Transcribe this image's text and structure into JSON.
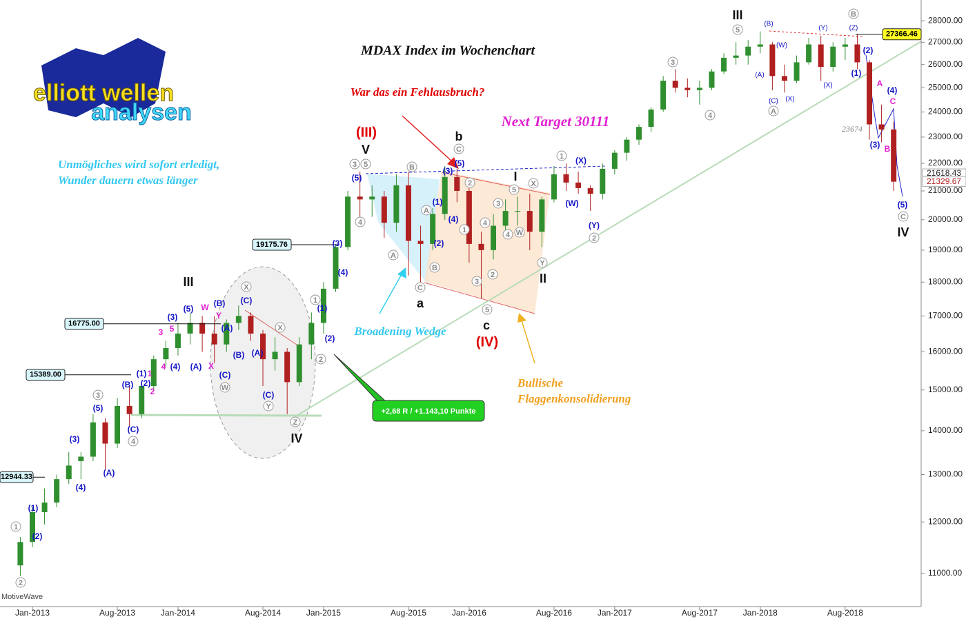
{
  "chart_data": {
    "type": "candlestick",
    "title": "MDAX Index im Wochenchart",
    "log_y": true,
    "ylim": [
      10400,
      29000
    ],
    "yticks": [
      {
        "value": 11000,
        "label": "11000.00"
      },
      {
        "value": 12000,
        "label": "12000.00"
      },
      {
        "value": 13000,
        "label": "13000.00"
      },
      {
        "value": 14000,
        "label": "14000.00"
      },
      {
        "value": 15000,
        "label": "15000.00"
      },
      {
        "value": 16000,
        "label": "16000.00"
      },
      {
        "value": 17000,
        "label": "17000.00"
      },
      {
        "value": 18000,
        "label": "18000.00"
      },
      {
        "value": 19000,
        "label": "19000.00"
      },
      {
        "value": 20000,
        "label": "20000.00"
      },
      {
        "value": 21000,
        "label": "21000.00"
      },
      {
        "value": 22000,
        "label": "22000.00"
      },
      {
        "value": 23000,
        "label": "23000.00"
      },
      {
        "value": 24000,
        "label": "24000.00"
      },
      {
        "value": 25000,
        "label": "25000.00"
      },
      {
        "value": 26000,
        "label": "26000.00"
      },
      {
        "value": 27000,
        "label": "27000.00"
      },
      {
        "value": 28000,
        "label": "28000.00"
      }
    ],
    "categories": [
      null,
      "Jan-2013",
      null,
      null,
      null,
      null,
      null,
      null,
      "Aug-2013",
      null,
      null,
      null,
      null,
      "Jan-2014",
      null,
      null,
      null,
      null,
      null,
      null,
      "Aug-2014",
      null,
      null,
      null,
      null,
      "Jan-2015",
      null,
      null,
      null,
      null,
      null,
      null,
      "Aug-2015",
      null,
      null,
      null,
      null,
      "Jan-2016",
      null,
      null,
      null,
      null,
      null,
      null,
      "Aug-2016",
      null,
      null,
      null,
      null,
      "Jan-2017",
      null,
      null,
      null,
      null,
      null,
      null,
      "Aug-2017",
      null,
      null,
      null,
      null,
      "Jan-2018",
      null,
      null,
      null,
      null,
      null,
      null,
      "Aug-2018",
      null,
      null,
      null,
      null
    ],
    "open": [
      11150,
      11600,
      12200,
      12400,
      12900,
      13300,
      13400,
      14200,
      13700,
      14600,
      14400,
      15100,
      15800,
      16100,
      16500,
      16800,
      16500,
      16200,
      16800,
      17000,
      16500,
      15800,
      16000,
      15200,
      16200,
      16800,
      17800,
      19100,
      20800,
      20700,
      20800,
      19900,
      21200,
      19300,
      19200,
      20200,
      21500,
      21000,
      19200,
      19000,
      19800,
      20300,
      20300,
      19600,
      20700,
      21600,
      21300,
      21100,
      20900,
      21800,
      22400,
      22900,
      23400,
      24100,
      25300,
      25000,
      24900,
      25000,
      25700,
      26300,
      26400,
      26800,
      26900,
      25500,
      25300,
      26100,
      26900,
      25900,
      26800,
      26900,
      26100,
      23500,
      23300
    ],
    "high": [
      11700,
      12300,
      12700,
      13000,
      13500,
      13500,
      14400,
      14300,
      14800,
      15100,
      15200,
      15900,
      16300,
      16800,
      17100,
      17000,
      17000,
      16900,
      17300,
      17100,
      16600,
      16400,
      16100,
      16400,
      17100,
      18000,
      19200,
      21000,
      21700,
      21200,
      21000,
      21600,
      21700,
      19800,
      20400,
      21900,
      21800,
      21100,
      19600,
      20200,
      20700,
      20800,
      20900,
      20800,
      21900,
      22000,
      21700,
      21200,
      22000,
      22500,
      23000,
      23500,
      24200,
      25500,
      25800,
      25400,
      25300,
      25800,
      26500,
      27000,
      27100,
      27500,
      27000,
      26000,
      26400,
      27200,
      27300,
      27000,
      27200,
      27366,
      26200,
      24300,
      23600
    ],
    "low": [
      10950,
      11500,
      11950,
      12300,
      12800,
      12900,
      13300,
      13100,
      13600,
      14100,
      14300,
      15000,
      15600,
      15900,
      16200,
      16000,
      15700,
      16000,
      16600,
      16300,
      15100,
      15500,
      14400,
      15100,
      15800,
      16500,
      17700,
      19000,
      20100,
      20100,
      19400,
      19600,
      18200,
      18000,
      19000,
      20000,
      20600,
      18600,
      17500,
      18700,
      19400,
      19800,
      19000,
      19100,
      20600,
      21000,
      20900,
      20300,
      20700,
      21600,
      22100,
      22700,
      23200,
      24000,
      24800,
      24600,
      24300,
      24900,
      25600,
      26000,
      26000,
      26500,
      24900,
      24800,
      25200,
      26000,
      25300,
      25700,
      26200,
      25800,
      22900,
      22800,
      21000
    ],
    "close": [
      11600,
      12200,
      12400,
      12900,
      13200,
      13400,
      14200,
      13700,
      14600,
      14400,
      15100,
      15800,
      16100,
      16500,
      16800,
      16500,
      16200,
      16800,
      17000,
      16500,
      15800,
      16000,
      15200,
      16200,
      16800,
      17800,
      19100,
      20800,
      20700,
      20800,
      19900,
      21200,
      19300,
      19200,
      20200,
      21500,
      21000,
      19200,
      19000,
      19800,
      20300,
      20300,
      19600,
      20700,
      21600,
      21300,
      21100,
      20900,
      21800,
      22400,
      22900,
      23400,
      24100,
      25300,
      25000,
      24900,
      25000,
      25700,
      26300,
      26400,
      26800,
      26900,
      25500,
      25300,
      26100,
      26900,
      25900,
      26800,
      26900,
      26100,
      23500,
      23300,
      21330
    ],
    "up_color": "#2f8f2f",
    "down_color": "#b02020",
    "levels": [
      {
        "value": 19175.76,
        "label": "19175.76"
      },
      {
        "value": 16775,
        "label": "16775.00"
      },
      {
        "value": 15389,
        "label": "15389.00"
      },
      {
        "value": 12944.33,
        "label": "12944.33"
      },
      {
        "value": 27366.46,
        "label": "27366.46"
      }
    ],
    "last_prices": [
      21618.43,
      21329.67
    ],
    "wave_labels": {
      "circled": [
        "2",
        "1",
        "3",
        "4",
        "X",
        "W",
        "Y",
        "X",
        "Z",
        "1",
        "2",
        "3",
        "5",
        "4",
        "B",
        "A",
        "C",
        "B",
        "A",
        "C",
        "2",
        "1",
        "3",
        "2",
        "5",
        "4",
        "3",
        "4",
        "W",
        "5",
        "X",
        "Y",
        "1",
        "2",
        "3",
        "4",
        "5",
        "A",
        "B",
        "C"
      ],
      "blue": [
        "(1)",
        "(2)",
        "(3)",
        "(4)",
        "(A)",
        "(5)",
        "(B)",
        "(C)",
        "(1)",
        "(2)",
        "(3)",
        "(4)",
        "(5)",
        "(A)",
        "(B)",
        "(A)",
        "(B)",
        "(C)",
        "(C)",
        "(A)",
        "(C)",
        "(1)",
        "(2)",
        "(3)",
        "(4)",
        "(5)",
        "(3)",
        "(5)",
        "(1)",
        "(2)",
        "(4)",
        "(X)",
        "(W)",
        "(Y)",
        "(B)",
        "(W)",
        "(A)",
        "(C)",
        "(X)",
        "(Y)",
        "(X)",
        "(Z)",
        "(2)",
        "(1)",
        "(4)",
        "(3)",
        "(5)"
      ],
      "magenta": [
        "W",
        "Y",
        "3",
        "5",
        "4",
        "X",
        "1",
        "2",
        "A",
        "B",
        "C"
      ],
      "black": [
        "III",
        "IV",
        "V",
        "b",
        "a",
        "c",
        "I",
        "II",
        "III",
        "IV"
      ],
      "red": [
        "(III)",
        "(IV)"
      ]
    },
    "annotations": {
      "question": "War das ein Fehlausbruch?",
      "target": "Next Target 30111",
      "motto": [
        "Unmögliches wird sofort erledigt,",
        "Wunder dauern etwas länger"
      ],
      "wedge": "Broadening Wedge",
      "flag": [
        "Bullische",
        "Flaggenkonsolidierung"
      ],
      "profit": "+2,68 R / +1.143,10 Punkte",
      "level_note": 23674,
      "source": "MotiveWave",
      "logo": [
        "elliott wellen",
        "analysen"
      ]
    }
  }
}
